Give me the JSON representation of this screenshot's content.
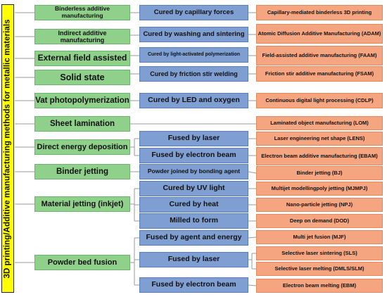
{
  "title": "3D printing/Additive manufacturing methods for metallic materials",
  "categories": [
    "Binderless additive manufacturing",
    "Indirect additive manufacturing",
    "External field assisted",
    "Solid state",
    "Vat photopolymerization",
    "Sheet lamination",
    "Direct energy deposition",
    "Binder jetting",
    "Material jetting (inkjet)",
    "Powder bed fusion"
  ],
  "mechanisms": [
    "Cured by capillary forces",
    "Cured by washing and sintering",
    "Cured by light-activated polymerization",
    "Cured by friction stir welding",
    "Cured by LED and oxygen",
    "Fused by laser",
    "Fused by electron beam",
    "Powder joined by bonding agent",
    "Cured by UV light",
    "Cured by heat",
    "Milled to form",
    "Fused by agent and energy",
    "Fused by laser",
    "Fused by electron beam"
  ],
  "processes": [
    "Capillary-mediated binderless 3D printing",
    "Atomic Diffusion Additive Manufacturing (ADAM)",
    "Field-assisted additive manufacturing (FAAM)",
    "Friction stir additive manufacturing (FSAM)",
    "Continuous digital light processing (CDLP)",
    "Laminated object manufacturing (LOM)",
    "Laser engineering net shape (LENS)",
    "Electron beam additive manufacturing (EBAM)",
    "Binder jetting (BJ)",
    "Multijet modellingpoly jetting (MJMPJ)",
    "Nano-particle jetting (NPJ)",
    "Deep on demand (DOD)",
    "Multi jet fusion (MJF)",
    "Selective laser sintering (SLS)",
    "Selective laser melting (DMLS/SLM)",
    "Electron beam melting (EBM)"
  ],
  "colors": {
    "title_bg": "#ffff00",
    "category": "#8fd18b",
    "mechanism": "#7f9fd3",
    "process": "#f5a57f",
    "connector": "#9a9a9a"
  }
}
